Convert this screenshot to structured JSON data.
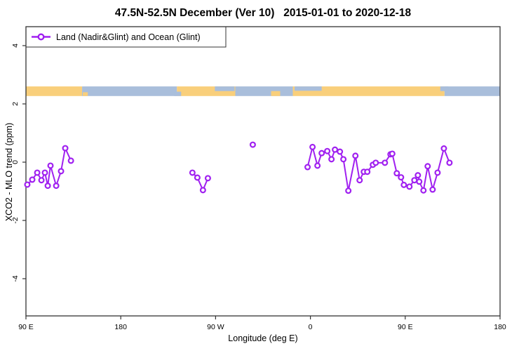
{
  "title": "47.5N-52.5N December (Ver 10)   2015-01-01 to 2020-12-18",
  "colors": {
    "series": "#A020F0",
    "land": "#F9CF7B",
    "ocean": "#A9BEDB",
    "axis": "#333333",
    "text": "#000000",
    "background": "#ffffff"
  },
  "chart_data": {
    "type": "line",
    "title": "47.5N-52.5N December (Ver 10)   2015-01-01 to 2020-12-18",
    "xlabel": "Longitude (deg E)",
    "ylabel": "XCO2 - MLO trend (ppm)",
    "xlim": [
      90,
      540
    ],
    "ylim": [
      -5.3,
      4.7
    ],
    "grid": false,
    "x_ticks": [
      {
        "value": 90,
        "label": "90 E"
      },
      {
        "value": 180,
        "label": "180"
      },
      {
        "value": 270,
        "label": "90 W"
      },
      {
        "value": 360,
        "label": "0"
      },
      {
        "value": 450,
        "label": "90 E"
      },
      {
        "value": 540,
        "label": "180"
      }
    ],
    "y_ticks": [
      {
        "value": 4,
        "label": "4"
      },
      {
        "value": 2,
        "label": "2"
      },
      {
        "value": 0,
        "label": "0"
      },
      {
        "value": -2,
        "label": "-2"
      },
      {
        "value": -4,
        "label": "-4"
      }
    ],
    "legend": {
      "label": "Land (Nadir&Glint) and Ocean (Glint)",
      "position": "topleft",
      "marker": "open-circle-on-line"
    },
    "marker": {
      "shape": "open-circle",
      "fill": "#ffffff"
    },
    "series": [
      {
        "name": "asia-cluster",
        "points": [
          [
            91.3,
            -0.77
          ],
          [
            96,
            -0.6
          ],
          [
            100.7,
            -0.36
          ],
          [
            104.7,
            -0.62
          ],
          [
            108,
            -0.36
          ],
          [
            110.7,
            -0.81
          ],
          [
            113.3,
            -0.12
          ],
          [
            118.7,
            -0.81
          ],
          [
            123.3,
            -0.31
          ],
          [
            127.3,
            0.48
          ],
          [
            132.7,
            0.05
          ]
        ]
      },
      {
        "name": "north-america-cluster",
        "points": [
          [
            248,
            -0.36
          ],
          [
            252.7,
            -0.53
          ],
          [
            258,
            -0.96
          ],
          [
            262.7,
            -0.55
          ]
        ]
      },
      {
        "name": "atlantic-single-point",
        "points": [
          [
            305.3,
            0.6
          ]
        ]
      },
      {
        "name": "europe-asia-cluster",
        "points": [
          [
            357.3,
            -0.17
          ],
          [
            362,
            0.52
          ],
          [
            366.7,
            -0.12
          ],
          [
            370.7,
            0.31
          ],
          [
            376,
            0.38
          ],
          [
            380,
            0.1
          ],
          [
            383.3,
            0.43
          ],
          [
            388,
            0.36
          ],
          [
            391.3,
            0.1
          ],
          [
            396,
            -0.98
          ],
          [
            402.7,
            0.22
          ],
          [
            406.7,
            -0.62
          ],
          [
            410.7,
            -0.33
          ],
          [
            414,
            -0.33
          ],
          [
            419.3,
            -0.09
          ],
          [
            422,
            -0.02
          ],
          [
            430.7,
            -0.02
          ],
          [
            436,
            0.27
          ],
          [
            437.7,
            0.29
          ],
          [
            442,
            -0.38
          ],
          [
            446,
            -0.52
          ],
          [
            448.7,
            -0.78
          ],
          [
            454,
            -0.84
          ],
          [
            458.7,
            -0.62
          ],
          [
            462,
            -0.45
          ],
          [
            463.3,
            -0.67
          ],
          [
            467.3,
            -0.97
          ],
          [
            471.3,
            -0.14
          ],
          [
            476,
            -0.94
          ],
          [
            480.7,
            -0.36
          ],
          [
            486.7,
            0.47
          ],
          [
            492,
            -0.02
          ]
        ]
      }
    ],
    "map_band": {
      "description": "land/ocean strip",
      "y_range": [
        2.27,
        2.6
      ],
      "segments": [
        {
          "lon": [
            90,
            143.3
          ],
          "type": "land"
        },
        {
          "lon": [
            143.3,
            233.3
          ],
          "type": "ocean"
        },
        {
          "lon": [
            233.3,
            288.7
          ],
          "type": "land"
        },
        {
          "lon": [
            288.7,
            343.3
          ],
          "type": "ocean"
        },
        {
          "lon": [
            343.3,
            487.3
          ],
          "type": "land"
        },
        {
          "lon": [
            487.3,
            540
          ],
          "type": "ocean"
        }
      ],
      "patches": [
        {
          "lon": [
            144,
            148.7
          ],
          "v": [
            2.27,
            2.4
          ],
          "type": "land"
        },
        {
          "lon": [
            230.7,
            237.3
          ],
          "v": [
            2.27,
            2.42
          ],
          "type": "ocean"
        },
        {
          "lon": [
            269.3,
            288
          ],
          "v": [
            2.44,
            2.6
          ],
          "type": "ocean"
        },
        {
          "lon": [
            322.7,
            331.3
          ],
          "v": [
            2.27,
            2.44
          ],
          "type": "land"
        },
        {
          "lon": [
            345,
            370.7
          ],
          "v": [
            2.45,
            2.6
          ],
          "type": "ocean"
        },
        {
          "lon": [
            483.3,
            491
          ],
          "v": [
            2.44,
            2.6
          ],
          "type": "ocean"
        }
      ]
    }
  }
}
